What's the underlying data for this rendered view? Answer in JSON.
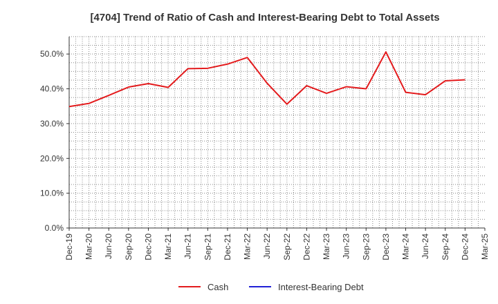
{
  "chart_data": {
    "type": "line",
    "title": "[4704]  Trend of Ratio of Cash and Interest-Bearing Debt to Total Assets",
    "xlabel": "",
    "ylabel": "",
    "x": [
      "Dec-19",
      "Mar-20",
      "Jun-20",
      "Sep-20",
      "Dec-20",
      "Mar-21",
      "Jun-21",
      "Sep-21",
      "Dec-21",
      "Mar-22",
      "Jun-22",
      "Sep-22",
      "Dec-22",
      "Mar-23",
      "Jun-23",
      "Sep-23",
      "Dec-23",
      "Mar-24",
      "Jun-24",
      "Sep-24",
      "Dec-24",
      "Mar-25"
    ],
    "ylim": [
      0,
      55
    ],
    "yticks": [
      0,
      10,
      20,
      30,
      40,
      50
    ],
    "ytick_labels": [
      "0.0%",
      "10.0%",
      "20.0%",
      "30.0%",
      "40.0%",
      "50.0%"
    ],
    "grid": true,
    "legend_position": "bottom",
    "series": [
      {
        "name": "Cash",
        "color": "#e31a1c",
        "values": [
          34.9,
          35.8,
          38.1,
          40.5,
          41.5,
          40.4,
          45.8,
          45.9,
          47.1,
          49.0,
          41.6,
          35.6,
          40.9,
          38.7,
          40.6,
          40.0,
          50.6,
          39.0,
          38.3,
          42.3,
          42.6,
          null
        ]
      },
      {
        "name": "Interest-Bearing Debt",
        "color": "#1f1fd6",
        "values": [
          null,
          null,
          null,
          null,
          null,
          null,
          null,
          null,
          null,
          null,
          null,
          null,
          null,
          null,
          null,
          null,
          null,
          null,
          null,
          null,
          null,
          null
        ]
      }
    ]
  }
}
